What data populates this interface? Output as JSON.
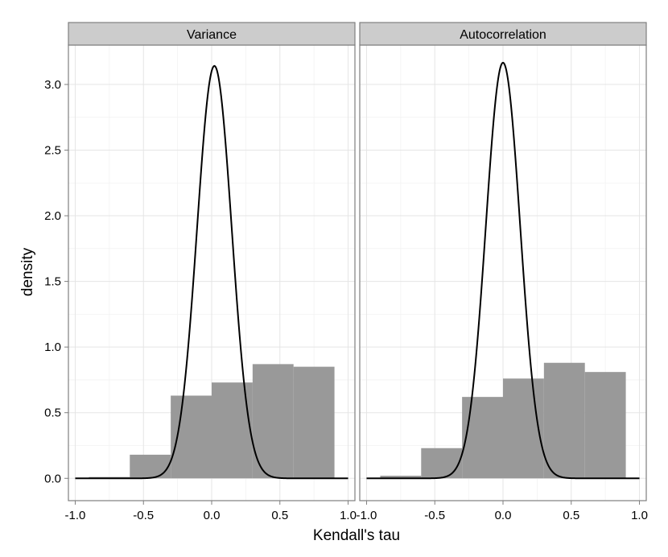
{
  "chart_data": {
    "type": "histogram",
    "xlabel": "Kendall's tau",
    "ylabel": "density",
    "xlim": [
      -1.05,
      1.05
    ],
    "ylim": [
      -0.17,
      3.3
    ],
    "x_ticks": [
      -1.0,
      -0.5,
      0.0,
      0.5,
      1.0
    ],
    "x_tick_labels": [
      "-1.0",
      "-0.5",
      "0.0",
      "0.5",
      "1.0"
    ],
    "y_ticks": [
      0.0,
      0.5,
      1.0,
      1.5,
      2.0,
      2.5,
      3.0
    ],
    "y_tick_labels": [
      "0.0",
      "0.5",
      "1.0",
      "1.5",
      "2.0",
      "2.5",
      "3.0"
    ],
    "grid": true,
    "bar_color": "#999999",
    "line_color": "#000000",
    "panel_border_color": "#7f7f7f",
    "strip_fill_color": "#cccccc",
    "panels": [
      {
        "strip_label": "Variance",
        "bars": [
          {
            "x0": -0.9,
            "x1": -0.6,
            "density": 0.01
          },
          {
            "x0": -0.6,
            "x1": -0.3,
            "density": 0.18
          },
          {
            "x0": -0.3,
            "x1": 0.0,
            "density": 0.63
          },
          {
            "x0": 0.0,
            "x1": 0.3,
            "density": 0.73
          },
          {
            "x0": 0.3,
            "x1": 0.6,
            "density": 0.87
          },
          {
            "x0": 0.6,
            "x1": 0.9,
            "density": 0.85
          }
        ],
        "curve": {
          "mean": 0.02,
          "sd": 0.127,
          "x_range": [
            -1.0,
            1.0
          ]
        }
      },
      {
        "strip_label": "Autocorrelation",
        "bars": [
          {
            "x0": -0.9,
            "x1": -0.6,
            "density": 0.02
          },
          {
            "x0": -0.6,
            "x1": -0.3,
            "density": 0.23
          },
          {
            "x0": -0.3,
            "x1": 0.0,
            "density": 0.62
          },
          {
            "x0": 0.0,
            "x1": 0.3,
            "density": 0.76
          },
          {
            "x0": 0.3,
            "x1": 0.6,
            "density": 0.88
          },
          {
            "x0": 0.6,
            "x1": 0.9,
            "density": 0.81
          }
        ],
        "curve": {
          "mean": 0.0,
          "sd": 0.126,
          "x_range": [
            -1.0,
            1.0
          ]
        }
      }
    ]
  }
}
